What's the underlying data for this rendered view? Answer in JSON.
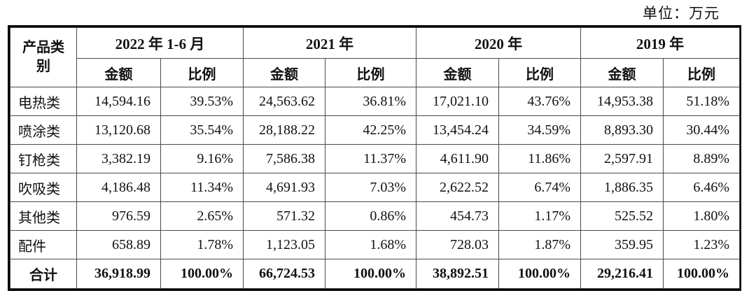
{
  "unit_label": "单位：万元",
  "table": {
    "row_header_line1": "产品类",
    "row_header_line2": "别",
    "col_groups": [
      {
        "label": "2022 年 1-6 月"
      },
      {
        "label": "2021 年"
      },
      {
        "label": "2020 年"
      },
      {
        "label": "2019 年"
      }
    ],
    "sub_headers": {
      "amount": "金额",
      "ratio": "比例"
    },
    "rows": [
      {
        "label": "电热类",
        "cells": [
          "14,594.16",
          "39.53%",
          "24,563.62",
          "36.81%",
          "17,021.10",
          "43.76%",
          "14,953.38",
          "51.18%"
        ]
      },
      {
        "label": "喷涂类",
        "cells": [
          "13,120.68",
          "35.54%",
          "28,188.22",
          "42.25%",
          "13,454.24",
          "34.59%",
          "8,893.30",
          "30.44%"
        ]
      },
      {
        "label": "钉枪类",
        "cells": [
          "3,382.19",
          "9.16%",
          "7,586.38",
          "11.37%",
          "4,611.90",
          "11.86%",
          "2,597.91",
          "8.89%"
        ]
      },
      {
        "label": "吹吸类",
        "cells": [
          "4,186.48",
          "11.34%",
          "4,691.93",
          "7.03%",
          "2,622.52",
          "6.74%",
          "1,886.35",
          "6.46%"
        ]
      },
      {
        "label": "其他类",
        "cells": [
          "976.59",
          "2.65%",
          "571.32",
          "0.86%",
          "454.73",
          "1.17%",
          "525.52",
          "1.80%"
        ]
      },
      {
        "label": "配件",
        "cells": [
          "658.89",
          "1.78%",
          "1,123.05",
          "1.68%",
          "728.03",
          "1.87%",
          "359.95",
          "1.23%"
        ]
      }
    ],
    "total_row": {
      "label": "合计",
      "cells": [
        "36,918.99",
        "100.00%",
        "66,724.53",
        "100.00%",
        "38,892.51",
        "100.00%",
        "29,216.41",
        "100.00%"
      ]
    },
    "colors": {
      "border_outer": "#000000",
      "border_inner": "#4a4a4a",
      "text": "#111111",
      "background": "#ffffff"
    }
  }
}
